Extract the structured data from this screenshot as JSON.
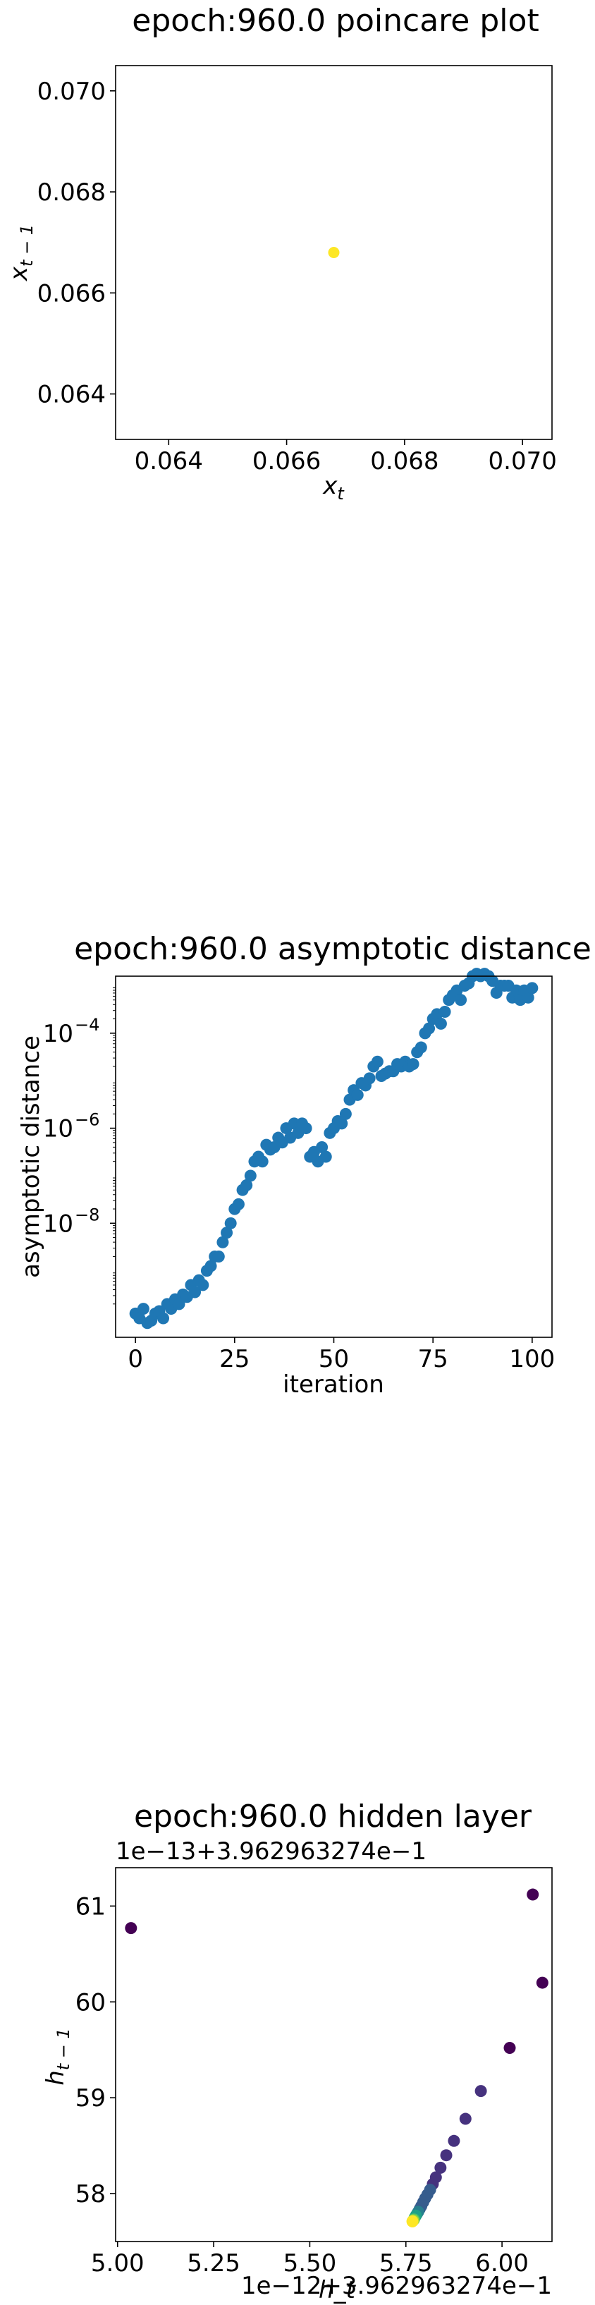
{
  "chart_data": [
    {
      "type": "scatter",
      "title": "epoch:960.0 poincare plot",
      "xlabel": "x",
      "xlabel_sub": "t",
      "ylabel": "x",
      "ylabel_sub": "t − 1",
      "xlim": [
        0.0631,
        0.0705
      ],
      "ylim": [
        0.0631,
        0.0705
      ],
      "xticks": [
        "0.064",
        "0.066",
        "0.068",
        "0.070"
      ],
      "yticks": [
        "0.064",
        "0.066",
        "0.068",
        "0.070"
      ],
      "xtick_values": [
        0.064,
        0.066,
        0.068,
        0.07
      ],
      "ytick_values": [
        0.064,
        0.066,
        0.068,
        0.07
      ],
      "points": [
        {
          "x": 0.0668,
          "y": 0.0668
        }
      ],
      "point_color": "#fde725"
    },
    {
      "type": "scatter",
      "title": "epoch:960.0 asymptotic distance",
      "xlabel": "iteration",
      "ylabel": "asymptotic distance",
      "yscale": "log",
      "xlim": [
        -5,
        105
      ],
      "ylim_log10": [
        -10.4,
        -2.8
      ],
      "xticks": [
        "0",
        "25",
        "50",
        "75",
        "100"
      ],
      "xtick_values": [
        0,
        25,
        50,
        75,
        100
      ],
      "yticks": [
        "10",
        "10",
        "10"
      ],
      "ytick_exponents": [
        "−8",
        "−6",
        "−4"
      ],
      "ytick_values_log10": [
        -8,
        -6,
        -4
      ],
      "color": "#1f77b4",
      "x": [
        0,
        1,
        2,
        3,
        4,
        5,
        6,
        7,
        8,
        9,
        10,
        11,
        12,
        13,
        14,
        15,
        16,
        17,
        18,
        19,
        20,
        21,
        22,
        23,
        24,
        25,
        26,
        27,
        28,
        29,
        30,
        31,
        32,
        33,
        34,
        35,
        36,
        37,
        38,
        39,
        40,
        41,
        42,
        43,
        44,
        45,
        46,
        47,
        48,
        49,
        50,
        51,
        52,
        53,
        54,
        55,
        56,
        57,
        58,
        59,
        60,
        61,
        62,
        63,
        64,
        65,
        66,
        67,
        68,
        69,
        70,
        71,
        72,
        73,
        74,
        75,
        76,
        77,
        78,
        79,
        80,
        81,
        82,
        83,
        84,
        85,
        86,
        87,
        88,
        89,
        90,
        91,
        92,
        93,
        94,
        95,
        96,
        97,
        98,
        99,
        100
      ],
      "log10_y": [
        -9.9,
        -10.0,
        -9.8,
        -10.1,
        -10.05,
        -9.9,
        -9.85,
        -10.0,
        -9.7,
        -9.8,
        -9.6,
        -9.7,
        -9.5,
        -9.55,
        -9.3,
        -9.45,
        -9.2,
        -9.3,
        -9.0,
        -8.9,
        -8.7,
        -8.7,
        -8.4,
        -8.2,
        -8.0,
        -7.7,
        -7.6,
        -7.3,
        -7.2,
        -7.0,
        -6.7,
        -6.6,
        -6.7,
        -6.35,
        -6.45,
        -6.4,
        -6.2,
        -6.3,
        -6.0,
        -6.2,
        -5.9,
        -6.1,
        -5.9,
        -6.0,
        -6.6,
        -6.5,
        -6.7,
        -6.4,
        -6.6,
        -6.1,
        -6.0,
        -5.85,
        -5.9,
        -5.7,
        -5.4,
        -5.2,
        -5.3,
        -5.05,
        -5.1,
        -4.95,
        -4.7,
        -4.6,
        -4.9,
        -4.85,
        -4.8,
        -4.8,
        -4.65,
        -4.7,
        -4.6,
        -4.7,
        -4.65,
        -4.4,
        -4.3,
        -4.0,
        -3.9,
        -3.7,
        -3.6,
        -3.8,
        -3.55,
        -3.3,
        -3.2,
        -3.1,
        -3.3,
        -3.0,
        -2.95,
        -2.8,
        -2.75,
        -2.8,
        -2.75,
        -2.8,
        -2.9,
        -3.15,
        -3.0,
        -3.0,
        -3.0,
        -3.25,
        -3.1,
        -3.3,
        -3.1,
        -3.25,
        -3.05
      ]
    },
    {
      "type": "scatter",
      "title": "epoch:960.0 hidden layer",
      "xlabel": "h_t",
      "ylabel": "h",
      "ylabel_sub": "t − 1",
      "x_offset_text": "1e−12+3.962963274e−1",
      "y_offset_text": "1e−13+3.962963274e−1",
      "xlim": [
        4.995,
        6.13
      ],
      "ylim": [
        57.5,
        61.4
      ],
      "xticks": [
        "5.00",
        "5.25",
        "5.50",
        "5.75",
        "6.00"
      ],
      "xtick_values": [
        5.0,
        5.25,
        5.5,
        5.75,
        6.0
      ],
      "yticks": [
        "58",
        "59",
        "60",
        "61"
      ],
      "ytick_values": [
        58,
        59,
        60,
        61
      ],
      "colormap": [
        "#440154",
        "#46327e",
        "#365c8d",
        "#277f8e",
        "#1fa187",
        "#4ac16d",
        "#a0da39",
        "#fde725"
      ],
      "points": [
        {
          "x": 5.035,
          "y": 60.77,
          "c": 0.0
        },
        {
          "x": 6.08,
          "y": 61.12,
          "c": 0.02
        },
        {
          "x": 6.105,
          "y": 60.2,
          "c": 0.04
        },
        {
          "x": 6.02,
          "y": 59.52,
          "c": 0.06
        },
        {
          "x": 5.945,
          "y": 59.07,
          "c": 0.08
        },
        {
          "x": 5.905,
          "y": 58.78,
          "c": 0.1
        },
        {
          "x": 5.875,
          "y": 58.55,
          "c": 0.12
        },
        {
          "x": 5.855,
          "y": 58.4,
          "c": 0.14
        },
        {
          "x": 5.84,
          "y": 58.27,
          "c": 0.16
        },
        {
          "x": 5.828,
          "y": 58.17,
          "c": 0.18
        },
        {
          "x": 5.82,
          "y": 58.1,
          "c": 0.2
        },
        {
          "x": 5.813,
          "y": 58.04,
          "c": 0.22
        },
        {
          "x": 5.806,
          "y": 57.99,
          "c": 0.24
        },
        {
          "x": 5.8,
          "y": 57.95,
          "c": 0.26
        },
        {
          "x": 5.795,
          "y": 57.91,
          "c": 0.28
        },
        {
          "x": 5.79,
          "y": 57.87,
          "c": 0.3
        },
        {
          "x": 5.786,
          "y": 57.84,
          "c": 0.34
        },
        {
          "x": 5.782,
          "y": 57.81,
          "c": 0.38
        },
        {
          "x": 5.779,
          "y": 57.79,
          "c": 0.44
        },
        {
          "x": 5.776,
          "y": 57.77,
          "c": 0.52
        },
        {
          "x": 5.773,
          "y": 57.75,
          "c": 0.62
        },
        {
          "x": 5.771,
          "y": 57.73,
          "c": 0.74
        },
        {
          "x": 5.769,
          "y": 57.72,
          "c": 0.86
        },
        {
          "x": 5.767,
          "y": 57.71,
          "c": 1.0
        }
      ]
    }
  ]
}
